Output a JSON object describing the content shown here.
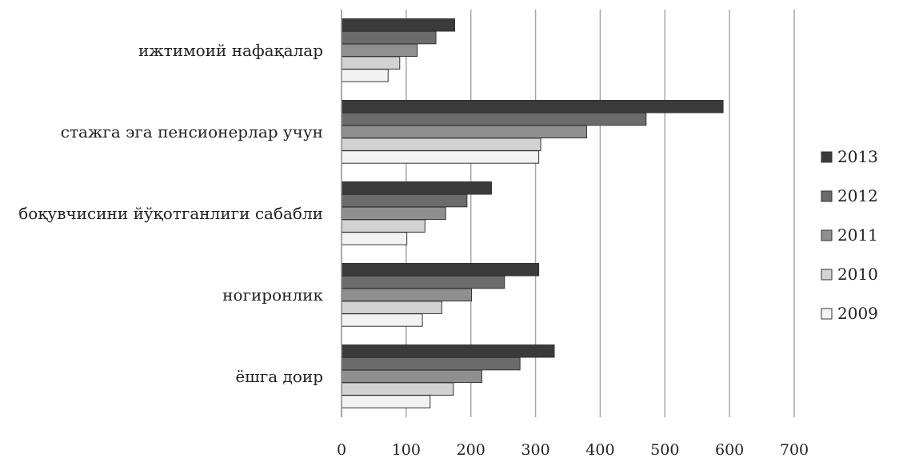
{
  "chart_data": {
    "type": "bar",
    "orientation": "horizontal",
    "categories": [
      "ижтимоий нафақалар",
      "стажга эга пенсионерлар учун",
      "боқувчисини йўқотганлиги сабабли",
      "ногиронлик",
      "ёшга доир"
    ],
    "series": [
      {
        "name": "2013",
        "color": "#3a3a3a",
        "values": [
          175,
          590,
          232,
          305,
          329
        ]
      },
      {
        "name": "2012",
        "color": "#6b6b6b",
        "values": [
          146,
          471,
          194,
          252,
          276
        ]
      },
      {
        "name": "2011",
        "color": "#8f8f8f",
        "values": [
          117,
          379,
          161,
          201,
          217
        ]
      },
      {
        "name": "2010",
        "color": "#d2d2d2",
        "values": [
          90,
          308,
          129,
          155,
          173
        ]
      },
      {
        "name": "2009",
        "color": "#f3f3f3",
        "values": [
          72,
          305,
          101,
          125,
          137
        ]
      }
    ],
    "x_ticks": [
      "0",
      "100",
      "200",
      "300",
      "400",
      "500",
      "600",
      "700"
    ],
    "xlim": [
      0,
      700
    ],
    "title": "",
    "xlabel": "",
    "ylabel": "",
    "grid": "vertical",
    "legend_position": "right"
  }
}
